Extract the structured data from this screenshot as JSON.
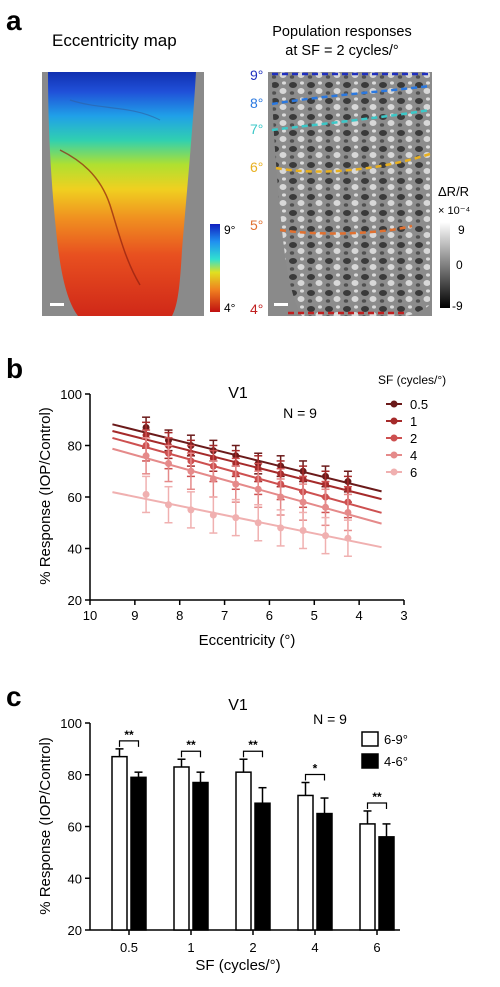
{
  "panel_a": {
    "letter": "a",
    "left_title": "Eccentricity map",
    "right_title_line1": "Population responses",
    "right_title_line2": "at SF = 2 cycles/°",
    "colorbar_left": {
      "top_label": "9°",
      "bottom_label": "4°"
    },
    "ecc_labels": [
      {
        "text": "9°",
        "color": "#1f2fbf"
      },
      {
        "text": "8°",
        "color": "#2a78e0"
      },
      {
        "text": "7°",
        "color": "#3cc8c8"
      },
      {
        "text": "6°",
        "color": "#e8b020"
      },
      {
        "text": "5°",
        "color": "#e07030"
      },
      {
        "text": "4°",
        "color": "#c02020"
      }
    ],
    "colorbar_right": {
      "title": "ΔR/R",
      "exponent": "× 10⁻⁴",
      "top": "9",
      "mid": "0",
      "bottom": "-9"
    }
  },
  "chart_data": [
    {
      "panel": "b",
      "type": "line",
      "title": "V1",
      "annotation": "N = 9",
      "xlabel": "Eccentricity (°)",
      "ylabel": "% Response (IOP/Control)",
      "xlim": [
        10,
        3
      ],
      "ylim": [
        20,
        100
      ],
      "x_ticks": [
        10,
        9,
        8,
        7,
        6,
        5,
        4,
        3
      ],
      "y_ticks": [
        20,
        40,
        60,
        80,
        100
      ],
      "legend_title": "SF (cycles/°)",
      "legend_position": "top-right",
      "x": [
        8.75,
        8.25,
        7.75,
        7.25,
        6.75,
        6.25,
        5.75,
        5.25,
        4.75,
        4.25
      ],
      "series": [
        {
          "name": "0.5",
          "color": "#6b1a1a",
          "values": [
            87,
            82,
            80,
            78,
            76,
            73,
            72,
            70,
            68,
            66
          ],
          "errors": [
            4,
            4,
            4,
            4,
            4,
            4,
            4,
            4,
            4,
            4
          ]
        },
        {
          "name": "1",
          "color": "#a52a2a",
          "values": [
            84,
            80,
            77,
            75,
            73,
            71,
            69,
            67,
            65,
            63
          ],
          "errors": [
            5,
            5,
            5,
            5,
            5,
            5,
            5,
            5,
            5,
            5
          ]
        },
        {
          "name": "2",
          "color": "#cd5050",
          "values": [
            80,
            77,
            74,
            72,
            69,
            67,
            65,
            62,
            60,
            58
          ],
          "errors": [
            6,
            6,
            6,
            6,
            6,
            6,
            6,
            6,
            6,
            6
          ]
        },
        {
          "name": "4",
          "color": "#e58a8a",
          "values": [
            76,
            73,
            70,
            67,
            65,
            63,
            60,
            58,
            56,
            54
          ],
          "errors": [
            7,
            7,
            7,
            7,
            7,
            7,
            7,
            7,
            7,
            7
          ]
        },
        {
          "name": "6",
          "color": "#f0b0b0",
          "values": [
            61,
            57,
            55,
            53,
            52,
            50,
            48,
            47,
            45,
            44
          ],
          "errors": [
            7,
            7,
            7,
            7,
            7,
            7,
            7,
            7,
            7,
            7
          ]
        }
      ]
    },
    {
      "panel": "c",
      "type": "bar",
      "title": "V1",
      "annotation": "N = 9",
      "xlabel": "SF (cycles/°)",
      "ylabel": "% Response (IOP/Control)",
      "ylim": [
        20,
        100
      ],
      "y_ticks": [
        20,
        40,
        60,
        80,
        100
      ],
      "categories": [
        "0.5",
        "1",
        "2",
        "4",
        "6"
      ],
      "legend_position": "top-right",
      "series": [
        {
          "name": "6-9°",
          "fill": "#ffffff",
          "values": [
            87,
            83,
            81,
            72,
            61
          ],
          "errors": [
            3,
            3,
            5,
            5,
            5
          ]
        },
        {
          "name": "4-6°",
          "fill": "#000000",
          "values": [
            79,
            77,
            69,
            65,
            56
          ],
          "errors": [
            2,
            4,
            6,
            6,
            5
          ]
        }
      ],
      "significance": [
        "**",
        "**",
        "**",
        "*",
        "**"
      ]
    }
  ]
}
